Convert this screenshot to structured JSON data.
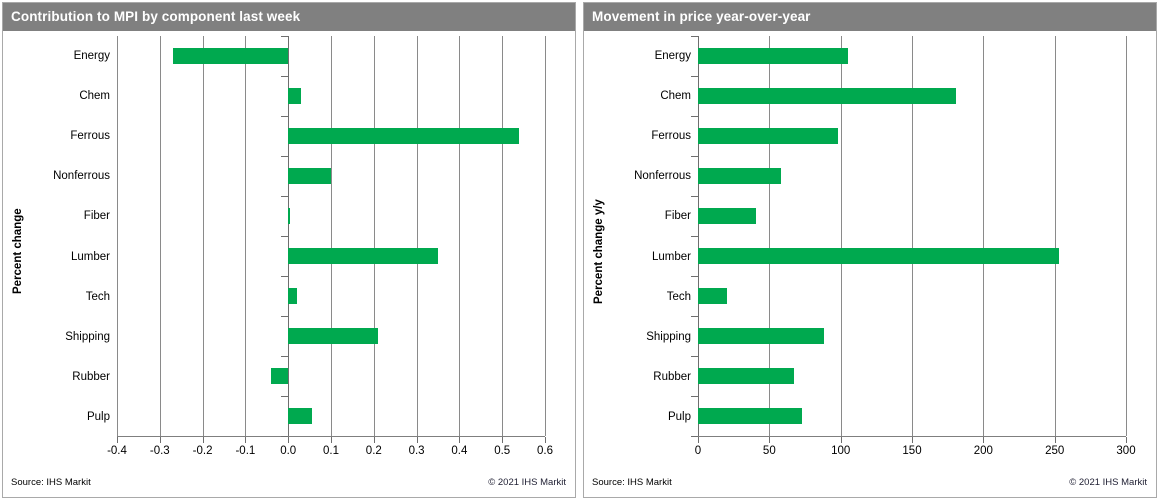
{
  "colors": {
    "bar_green": "#00a94f",
    "titlebar_gray": "#808080",
    "gridline_gray": "#8a8a8a"
  },
  "panels": [
    {
      "title": "Contribution to MPI by component last week",
      "ylabel": "Percent change",
      "source": "Source:  IHS Markit",
      "copyright": "© 2021  IHS Markit"
    },
    {
      "title": "Movement in price year-over-year",
      "ylabel": "Percent change y/y",
      "source": "Source:  IHS Markit",
      "copyright": "© 2021  IHS Markit"
    }
  ],
  "chart_data": [
    {
      "type": "bar",
      "orientation": "horizontal",
      "title": "Contribution to MPI by component last week",
      "ylabel": "Percent change",
      "xlabel": "",
      "categories": [
        "Energy",
        "Chem",
        "Ferrous",
        "Nonferrous",
        "Fiber",
        "Lumber",
        "Tech",
        "Shipping",
        "Rubber",
        "Pulp"
      ],
      "values": [
        -0.27,
        0.03,
        0.54,
        0.1,
        0.005,
        0.35,
        0.02,
        0.21,
        -0.04,
        0.055
      ],
      "xlim": [
        -0.4,
        0.6
      ],
      "xticks": [
        -0.4,
        -0.3,
        -0.2,
        -0.1,
        0.0,
        0.1,
        0.2,
        0.3,
        0.4,
        0.5,
        0.6
      ],
      "xtick_labels": [
        "-0.4",
        "-0.3",
        "-0.2",
        "-0.1",
        "0.0",
        "0.1",
        "0.2",
        "0.3",
        "0.4",
        "0.5",
        "0.6"
      ],
      "grid": true,
      "legend": false,
      "bar_color": "#00a94f"
    },
    {
      "type": "bar",
      "orientation": "horizontal",
      "title": "Movement in price year-over-year",
      "ylabel": "Percent change y/y",
      "xlabel": "",
      "categories": [
        "Energy",
        "Chem",
        "Ferrous",
        "Nonferrous",
        "Fiber",
        "Lumber",
        "Tech",
        "Shipping",
        "Rubber",
        "Pulp"
      ],
      "values": [
        105,
        181,
        98,
        58,
        41,
        253,
        20,
        88,
        67,
        73
      ],
      "xlim": [
        0,
        300
      ],
      "xticks": [
        0,
        50,
        100,
        150,
        200,
        250,
        300
      ],
      "xtick_labels": [
        "0",
        "50",
        "100",
        "150",
        "200",
        "250",
        "300"
      ],
      "grid": true,
      "legend": false,
      "bar_color": "#00a94f"
    }
  ]
}
